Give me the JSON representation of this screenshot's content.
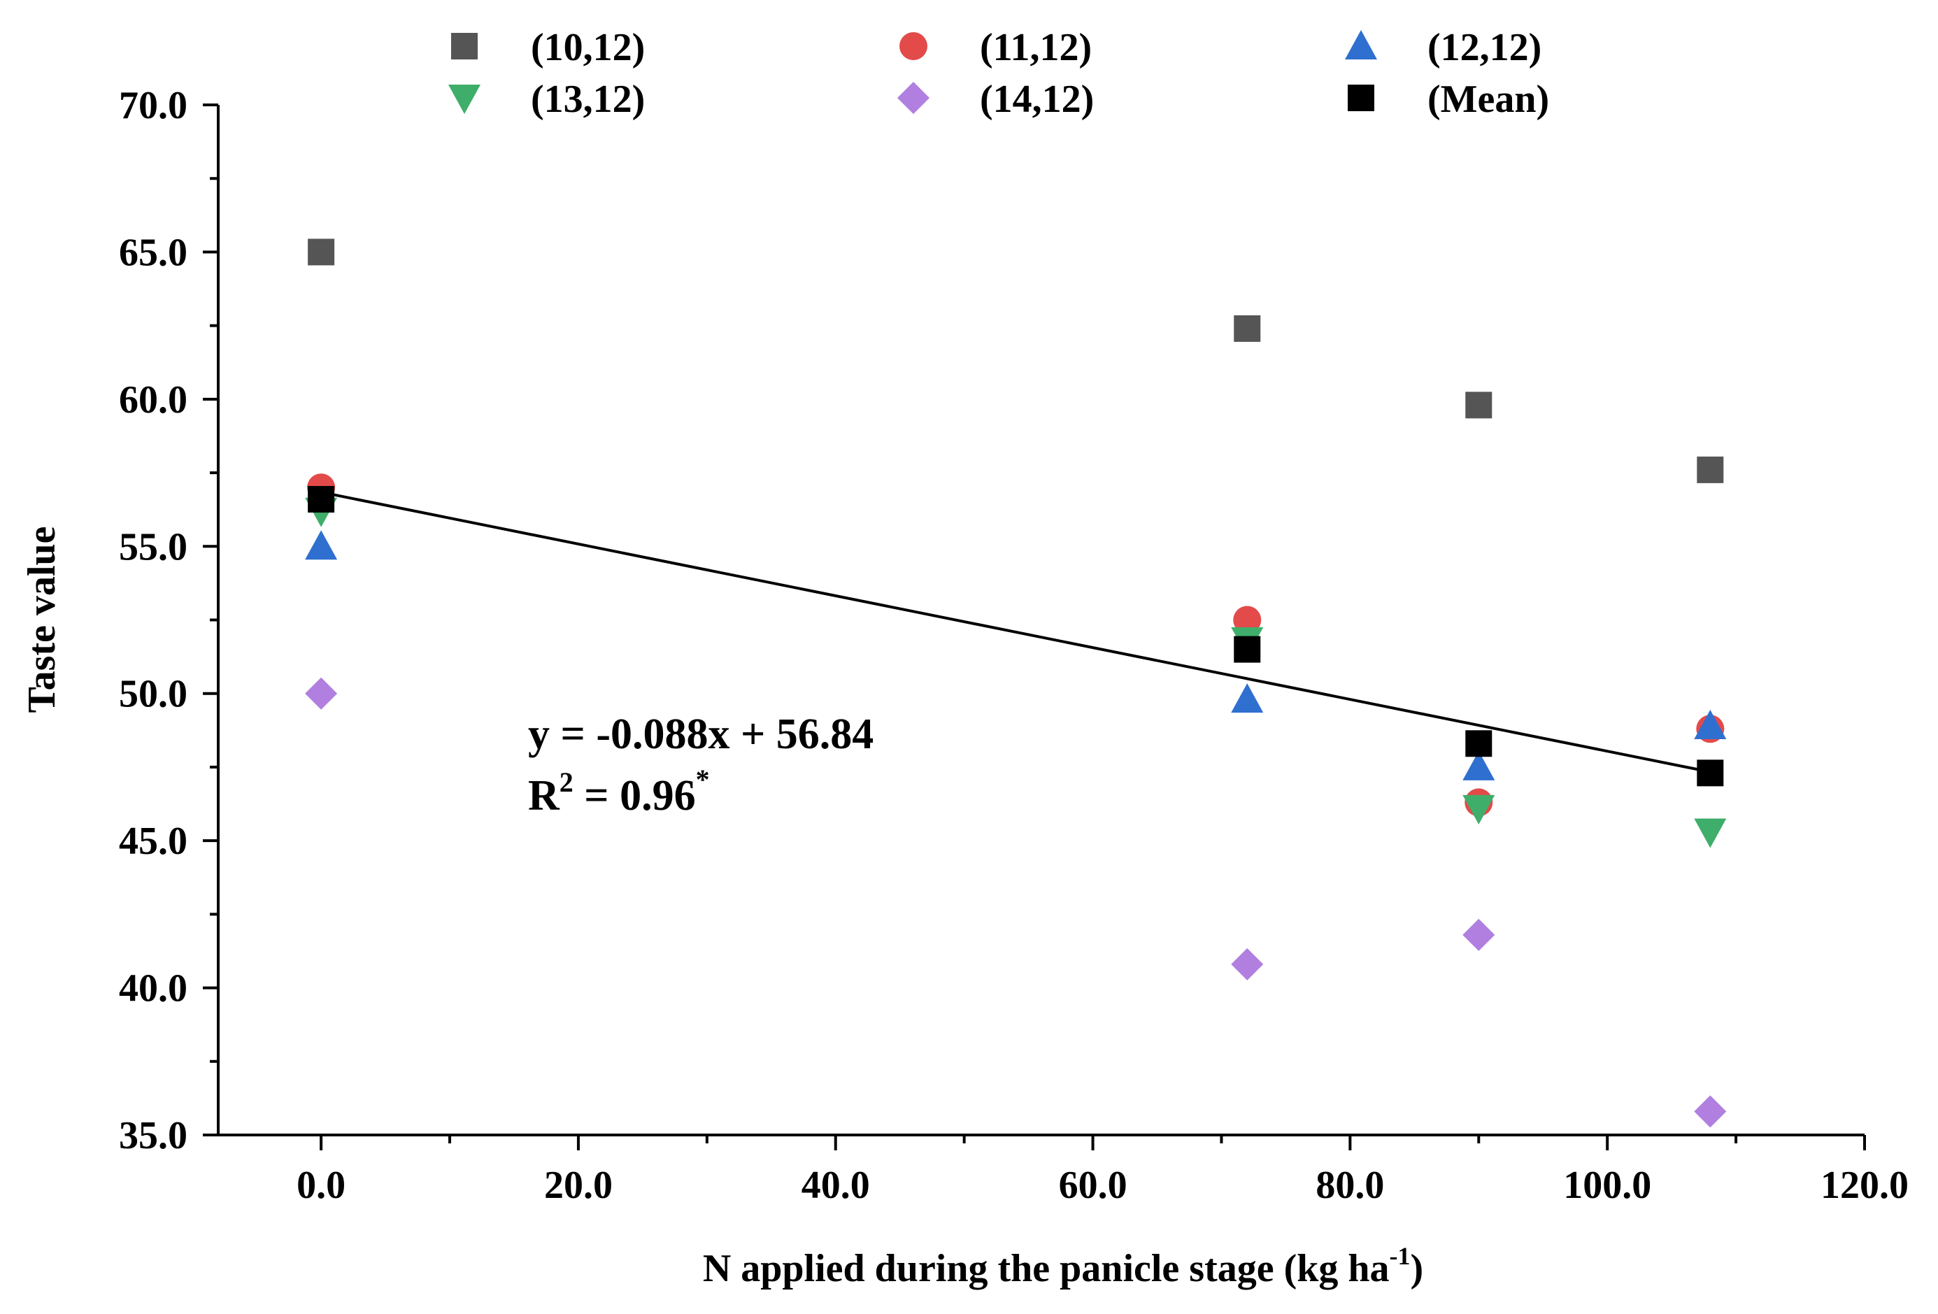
{
  "chart_data": {
    "type": "scatter",
    "title": "",
    "xlabel": "N applied during the panicle stage (kg ha",
    "xlabel_sup": "-1",
    "xlabel_close": ")",
    "ylabel": "Taste value",
    "xlim": [
      -8,
      120
    ],
    "ylim": [
      35,
      70
    ],
    "x_ticks": [
      0,
      20,
      40,
      60,
      80,
      100,
      120
    ],
    "x_tick_labels": [
      "0.0",
      "20.0",
      "40.0",
      "60.0",
      "80.0",
      "100.0",
      "120.0"
    ],
    "y_ticks": [
      35,
      40,
      45,
      50,
      55,
      60,
      65,
      70
    ],
    "y_tick_labels": [
      "35.0",
      "40.0",
      "45.0",
      "50.0",
      "55.0",
      "60.0",
      "65.0",
      "70.0"
    ],
    "legend_position": "top",
    "series": [
      {
        "name": "(10,12)",
        "marker": "square",
        "color": "#555555",
        "x": [
          0,
          72,
          90,
          108
        ],
        "y": [
          65.0,
          62.4,
          59.8,
          57.6
        ]
      },
      {
        "name": "(11,12)",
        "marker": "circle",
        "color": "#e34a4a",
        "x": [
          0,
          72,
          90,
          108
        ],
        "y": [
          57.0,
          52.5,
          46.3,
          48.8
        ]
      },
      {
        "name": "(12,12)",
        "marker": "triangle-up",
        "color": "#2f6fd0",
        "x": [
          0,
          72,
          90,
          108
        ],
        "y": [
          55.0,
          49.8,
          47.5,
          48.9
        ]
      },
      {
        "name": "(13,12)",
        "marker": "triangle-down",
        "color": "#3fae6a",
        "x": [
          0,
          72,
          90,
          108
        ],
        "y": [
          56.2,
          51.8,
          46.1,
          45.3
        ]
      },
      {
        "name": "(14,12)",
        "marker": "diamond",
        "color": "#b07fe0",
        "x": [
          0,
          72,
          90,
          108
        ],
        "y": [
          50.0,
          40.8,
          41.8,
          35.8
        ]
      },
      {
        "name": "(Mean)",
        "marker": "square",
        "color": "#000000",
        "x": [
          0,
          72,
          90,
          108
        ],
        "y": [
          56.6,
          51.5,
          48.3,
          47.3
        ]
      }
    ],
    "fit_line": {
      "slope": -0.088,
      "intercept": 56.84,
      "x_range": [
        0,
        108
      ]
    },
    "annotation": {
      "equation": "y = -0.088x + 56.84",
      "r2_prefix": "R",
      "r2_exp": "2",
      "r2_value": " = 0.96",
      "r2_mark": "*"
    }
  }
}
